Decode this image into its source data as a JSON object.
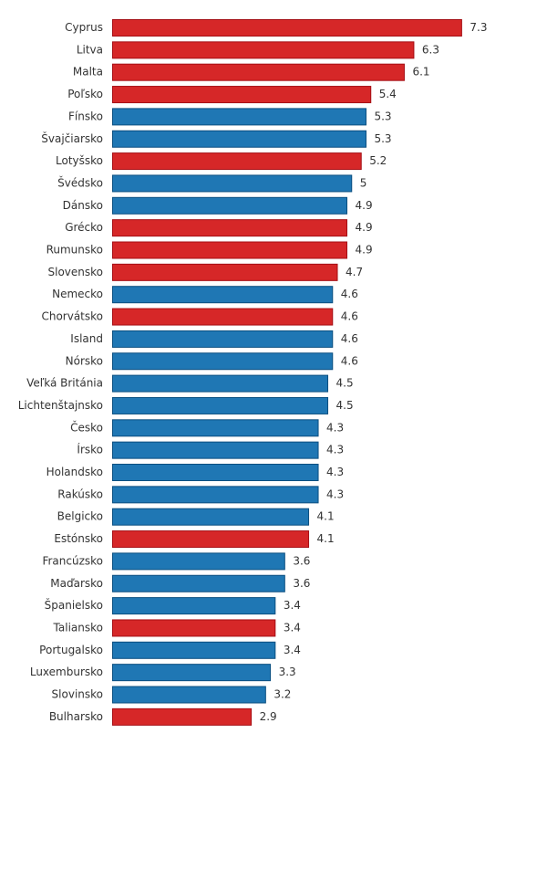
{
  "chart_data": {
    "type": "bar",
    "orientation": "horizontal",
    "title": "",
    "xlabel": "",
    "ylabel": "",
    "xlim": [
      0,
      7.3
    ],
    "grid": false,
    "legend": "none",
    "colors": {
      "red": "#d62728",
      "blue": "#1f77b4",
      "red_border": "#a50f15",
      "blue_border": "#0b4f80"
    },
    "categories": [
      "Cyprus",
      "Litva",
      "Malta",
      "Poľsko",
      "Fínsko",
      "Švajčiarsko",
      "Lotyšsko",
      "Švédsko",
      "Dánsko",
      "Grécko",
      "Rumunsko",
      "Slovensko",
      "Nemecko",
      "Chorvátsko",
      "Island",
      "Nórsko",
      "Veľká Británia",
      "Lichtenštajnsko",
      "Česko",
      "Írsko",
      "Holandsko",
      "Rakúsko",
      "Belgicko",
      "Estónsko",
      "Francúzsko",
      "Maďarsko",
      "Španielsko",
      "Taliansko",
      "Portugalsko",
      "Luxembursko",
      "Slovinsko",
      "Bulharsko"
    ],
    "values": [
      7.3,
      6.3,
      6.1,
      5.4,
      5.3,
      5.3,
      5.2,
      5,
      4.9,
      4.9,
      4.9,
      4.7,
      4.6,
      4.6,
      4.6,
      4.6,
      4.5,
      4.5,
      4.3,
      4.3,
      4.3,
      4.3,
      4.1,
      4.1,
      3.6,
      3.6,
      3.4,
      3.4,
      3.4,
      3.3,
      3.2,
      2.9
    ],
    "value_labels": [
      "7.3",
      "6.3",
      "6.1",
      "5.4",
      "5.3",
      "5.3",
      "5.2",
      "5",
      "4.9",
      "4.9",
      "4.9",
      "4.7",
      "4.6",
      "4.6",
      "4.6",
      "4.6",
      "4.5",
      "4.5",
      "4.3",
      "4.3",
      "4.3",
      "4.3",
      "4.1",
      "4.1",
      "3.6",
      "3.6",
      "3.4",
      "3.4",
      "3.4",
      "3.3",
      "3.2",
      "2.9"
    ],
    "bar_colors": [
      "red",
      "red",
      "red",
      "red",
      "blue",
      "blue",
      "red",
      "blue",
      "blue",
      "red",
      "red",
      "red",
      "blue",
      "red",
      "blue",
      "blue",
      "blue",
      "blue",
      "blue",
      "blue",
      "blue",
      "blue",
      "blue",
      "red",
      "blue",
      "blue",
      "blue",
      "red",
      "blue",
      "blue",
      "blue",
      "red"
    ]
  }
}
